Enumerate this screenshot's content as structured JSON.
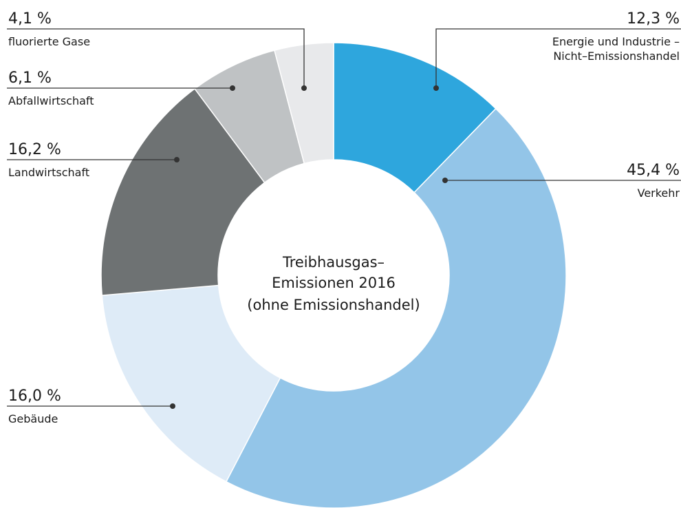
{
  "chart_data": {
    "type": "pie",
    "title": [
      "Treibhausgas–",
      "Emissionen 2016"
    ],
    "subtitle": "(ohne Emissionshandel)",
    "categories": [
      "Energie und Industrie –\nNicht–Emissionshandel",
      "Verkehr",
      "Gebäude",
      "Landwirtschaft",
      "Abfallwirtschaft",
      "fluorierte Gase"
    ],
    "values": [
      12.3,
      45.4,
      16.0,
      16.2,
      6.1,
      4.1
    ],
    "value_labels": [
      "12,3 %",
      "45,4 %",
      "16,0 %",
      "16,2 %",
      "6,1 %",
      "4,1 %"
    ],
    "colors": [
      "#2ea6dd",
      "#93c5e8",
      "#deebf7",
      "#6e7273",
      "#bfc2c4",
      "#e8e9eb"
    ],
    "donut": true
  }
}
